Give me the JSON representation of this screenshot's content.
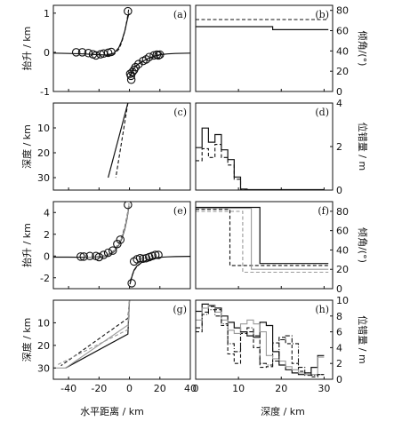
{
  "xlabels": {
    "left": "水平距离 / km",
    "right": "深度 / km"
  },
  "chart_data": [
    {
      "panel": "(a)",
      "type": "scatter+line",
      "ylabel": "抬升 / km",
      "xlim": [
        -50,
        40
      ],
      "ylim": [
        -1,
        1.2
      ],
      "yticks": [
        -1,
        0,
        1
      ],
      "xticks": [
        -40,
        -20,
        0,
        20,
        40
      ],
      "series": [
        {
          "style": "solid",
          "x": [
            -50,
            -40,
            -30,
            -20,
            -15,
            -10,
            -7,
            -5,
            -3,
            -1.5,
            -0.3
          ],
          "y": [
            -0.02,
            -0.03,
            -0.04,
            -0.06,
            -0.07,
            -0.02,
            0.12,
            0.3,
            0.55,
            0.82,
            1.0
          ]
        },
        {
          "style": "dashed",
          "x": [
            -15,
            -10,
            -7,
            -5,
            -3,
            -1.5,
            -0.5
          ],
          "y": [
            -0.09,
            -0.05,
            0.08,
            0.26,
            0.55,
            0.85,
            1.1
          ]
        },
        {
          "style": "solid",
          "x": [
            0.3,
            1.5,
            3,
            5,
            8,
            12,
            16,
            20,
            25,
            30,
            40
          ],
          "y": [
            -0.6,
            -0.48,
            -0.4,
            -0.32,
            -0.25,
            -0.16,
            -0.1,
            -0.06,
            -0.04,
            -0.03,
            -0.02
          ]
        },
        {
          "style": "dashed",
          "x": [
            0.5,
            1.5,
            3,
            5,
            8,
            12,
            16,
            20
          ],
          "y": [
            -0.62,
            -0.52,
            -0.42,
            -0.33,
            -0.24,
            -0.16,
            -0.11,
            -0.07
          ]
        }
      ],
      "points": {
        "x": [
          -35,
          -31,
          -27,
          -24,
          -22,
          -19,
          -17,
          -14,
          -12,
          -1,
          0.5,
          1,
          1.2,
          2,
          3,
          4,
          6,
          9,
          11,
          13,
          16,
          18,
          19,
          20
        ],
        "y": [
          0,
          0,
          -0.02,
          -0.05,
          -0.08,
          -0.05,
          -0.03,
          -0.01,
          0.01,
          1.05,
          -0.55,
          -0.6,
          -0.7,
          -0.5,
          -0.45,
          -0.38,
          -0.3,
          -0.22,
          -0.18,
          -0.12,
          -0.08,
          -0.06,
          -0.08,
          -0.06
        ]
      }
    },
    {
      "panel": "(b)",
      "type": "line",
      "ylabel": "倾角/(°)",
      "xlim": [
        0,
        32
      ],
      "ylim": [
        0,
        85
      ],
      "yticks": [
        0,
        20,
        40,
        60,
        80
      ],
      "xticks": [
        0,
        10,
        20,
        30
      ],
      "series": [
        {
          "style": "dashed",
          "x": [
            0,
            31
          ],
          "y": [
            71,
            71
          ]
        },
        {
          "style": "solid",
          "x": [
            0,
            18,
            18,
            31
          ],
          "y": [
            64,
            64,
            61,
            61
          ]
        }
      ]
    },
    {
      "panel": "(c)",
      "type": "line",
      "ylabel": "深度 / km",
      "xlim": [
        -50,
        40
      ],
      "ylim": [
        35,
        0
      ],
      "yticks": [
        10,
        20,
        30
      ],
      "xticks": [
        -40,
        -20,
        0,
        20,
        40
      ],
      "series": [
        {
          "style": "solid",
          "x": [
            -1,
            -14
          ],
          "y": [
            0,
            30
          ]
        },
        {
          "style": "dashed",
          "x": [
            -1,
            -9
          ],
          "y": [
            0,
            30
          ]
        }
      ]
    },
    {
      "panel": "(d)",
      "type": "step",
      "ylabel": "位错量 / m",
      "xlim": [
        0,
        32
      ],
      "ylim": [
        0,
        4
      ],
      "yticks": [
        0,
        2,
        4
      ],
      "xticks": [
        0,
        10,
        20,
        30
      ],
      "series": [
        {
          "style": "solid",
          "edges": [
            0,
            1.5,
            3,
            4.5,
            6,
            7.5,
            9,
            10.5,
            12,
            13.5,
            15,
            30
          ],
          "values": [
            1.95,
            2.85,
            2.2,
            2.55,
            1.85,
            1.4,
            0.6,
            0.05,
            0.02,
            0.02,
            0.02
          ]
        },
        {
          "style": "dashed",
          "edges": [
            0,
            1.5,
            3,
            4.5,
            6,
            7.5,
            9,
            10.5,
            12,
            13.5,
            15,
            30
          ],
          "values": [
            1.35,
            1.9,
            1.5,
            2.1,
            1.5,
            1.15,
            0.5,
            0.04,
            0.02,
            0.02,
            0.02
          ]
        }
      ]
    },
    {
      "panel": "(e)",
      "type": "scatter+line",
      "ylabel": "抬升 / km",
      "xlim": [
        -50,
        40
      ],
      "ylim": [
        -3,
        5
      ],
      "yticks": [
        -2,
        0,
        2,
        4
      ],
      "xticks": [
        -40,
        -20,
        0,
        20,
        40
      ],
      "series": [
        {
          "style": "solid",
          "x": [
            -50,
            -40,
            -30,
            -20,
            -15,
            -10,
            -7,
            -5,
            -3,
            -1.5,
            -0.3
          ],
          "y": [
            -0.1,
            -0.1,
            -0.12,
            -0.1,
            0,
            0.4,
            1.0,
            1.6,
            2.5,
            3.5,
            4.6
          ]
        },
        {
          "style": "dashed",
          "x": [
            -30,
            -20,
            -15,
            -10,
            -7,
            -5,
            -3,
            -1.5,
            -0.3
          ],
          "y": [
            -0.15,
            -0.05,
            0.05,
            0.5,
            1.15,
            1.8,
            2.7,
            3.7,
            4.8
          ]
        },
        {
          "style": "gray",
          "x": [
            -30,
            -20,
            -15,
            -10,
            -7,
            -5,
            -3,
            -1.5,
            -0.3
          ],
          "y": [
            -0.12,
            -0.08,
            0.02,
            0.45,
            1.05,
            1.7,
            2.6,
            3.6,
            4.7
          ]
        },
        {
          "style": "solid",
          "x": [
            0.3,
            1,
            2,
            3,
            5,
            8,
            12,
            16,
            20,
            25,
            30,
            40
          ],
          "y": [
            -2.6,
            -2.2,
            -1.7,
            -1.3,
            -0.9,
            -0.6,
            -0.35,
            -0.2,
            -0.12,
            -0.08,
            -0.05,
            -0.03
          ]
        },
        {
          "style": "dashed",
          "x": [
            0.5,
            1.5,
            3,
            5,
            8,
            12,
            16,
            20
          ],
          "y": [
            -2.3,
            -1.9,
            -1.35,
            -0.95,
            -0.6,
            -0.38,
            -0.22,
            -0.14
          ]
        }
      ],
      "points": {
        "x": [
          -32,
          -30,
          -26,
          -22,
          -20,
          -17,
          -14,
          -11,
          -8,
          -6,
          -1,
          1.5,
          3,
          5,
          7,
          9,
          11,
          13,
          15,
          17,
          19
        ],
        "y": [
          -0.05,
          -0.05,
          0,
          0,
          -0.1,
          0.1,
          0.3,
          0.5,
          1.1,
          1.5,
          4.7,
          -2.5,
          -0.5,
          -0.3,
          -0.2,
          -0.25,
          -0.2,
          -0.1,
          0,
          0.1,
          0.1
        ]
      }
    },
    {
      "panel": "(f)",
      "type": "line",
      "ylabel": "倾角/(°)",
      "xlim": [
        0,
        32
      ],
      "ylim": [
        0,
        90
      ],
      "yticks": [
        0,
        20,
        40,
        60,
        80
      ],
      "xticks": [
        0,
        10,
        20,
        30
      ],
      "series": [
        {
          "style": "solid",
          "x": [
            0,
            15,
            15,
            31
          ],
          "y": [
            84,
            84,
            26,
            26
          ]
        },
        {
          "style": "dashed",
          "x": [
            0,
            8,
            8,
            31
          ],
          "y": [
            82,
            82,
            24,
            24
          ]
        },
        {
          "style": "gray",
          "x": [
            0,
            13,
            13,
            31
          ],
          "y": [
            83,
            83,
            20,
            20
          ]
        },
        {
          "style": "gray-dashed",
          "x": [
            0,
            11,
            11,
            31
          ],
          "y": [
            80,
            80,
            17,
            17
          ]
        }
      ]
    },
    {
      "panel": "(g)",
      "type": "line",
      "ylabel": "深度 / km",
      "xlim": [
        -50,
        40
      ],
      "ylim": [
        35,
        0
      ],
      "yticks": [
        10,
        20,
        30
      ],
      "xticks": [
        -40,
        -20,
        0,
        20,
        40
      ],
      "series": [
        {
          "style": "solid",
          "x": [
            0,
            -1,
            -42
          ],
          "y": [
            0,
            15,
            30
          ]
        },
        {
          "style": "dashed",
          "x": [
            0,
            -1,
            -45
          ],
          "y": [
            0,
            8,
            29
          ]
        },
        {
          "style": "gray",
          "x": [
            0,
            -1,
            -42,
            -50
          ],
          "y": [
            0,
            11,
            30,
            30
          ]
        },
        {
          "style": "gray-dashed",
          "x": [
            0,
            -1,
            -47
          ],
          "y": [
            0,
            13,
            28.5
          ]
        }
      ]
    },
    {
      "panel": "(h)",
      "type": "step",
      "ylabel": "位错量 / m",
      "xlim": [
        0,
        32
      ],
      "ylim": [
        0,
        10
      ],
      "yticks": [
        0,
        2,
        4,
        6,
        8,
        10
      ],
      "xticks": [
        0,
        10,
        20,
        30
      ],
      "series": [
        {
          "style": "solid",
          "edges": [
            0,
            1.5,
            3,
            4.5,
            6,
            7.5,
            9,
            10.5,
            12,
            13.5,
            15,
            16.5,
            18,
            19.5,
            21,
            22.5,
            24,
            25.5,
            27,
            28.5,
            30
          ],
          "values": [
            8.6,
            9.5,
            9.3,
            9.0,
            8.0,
            7.2,
            6.5,
            6.0,
            5.5,
            5.3,
            7.2,
            6.8,
            3.5,
            1.8,
            1.2,
            0.8,
            0.6,
            0.8,
            1.5,
            3.0
          ]
        },
        {
          "style": "dashed",
          "edges": [
            0,
            1.5,
            3,
            4.5,
            6,
            7.5,
            9,
            10.5,
            12,
            13.5,
            15,
            16.5,
            18,
            19.5,
            21,
            22.5,
            24,
            25.5,
            27,
            28.5,
            30
          ],
          "values": [
            6.0,
            8.5,
            9.2,
            8.8,
            6.8,
            3.2,
            2.0,
            5.8,
            6.0,
            4.0,
            1.5,
            1.6,
            4.6,
            5.3,
            4.5,
            2.0,
            1.0,
            0.5,
            0.3,
            0.6
          ]
        },
        {
          "style": "gray",
          "edges": [
            0,
            1.5,
            3,
            4.5,
            6,
            7.5,
            9,
            10.5,
            12,
            13.5,
            15,
            16.5,
            18,
            19.5,
            21,
            22.5,
            24,
            25.5,
            27,
            28.5,
            30
          ],
          "values": [
            7.5,
            9.0,
            9.4,
            8.5,
            7.5,
            6.2,
            5.8,
            7.0,
            7.5,
            7.0,
            6.0,
            3.0,
            2.6,
            2.3,
            1.6,
            1.2,
            0.8,
            0.6,
            0.6,
            2.8
          ]
        },
        {
          "style": "dash-dot",
          "edges": [
            0,
            1.5,
            3,
            4.5,
            6,
            7.5,
            9,
            10.5,
            12,
            13.5,
            15,
            16.5,
            18,
            19.5,
            21,
            22.5,
            24,
            25.5,
            27,
            28.5,
            30
          ],
          "values": [
            6.5,
            8.2,
            8.8,
            8.0,
            7.0,
            4.5,
            3.5,
            6.0,
            6.5,
            5.5,
            2.0,
            1.8,
            2.3,
            5.0,
            5.5,
            4.5,
            1.5,
            0.8,
            0.5,
            0.6
          ]
        }
      ]
    }
  ]
}
